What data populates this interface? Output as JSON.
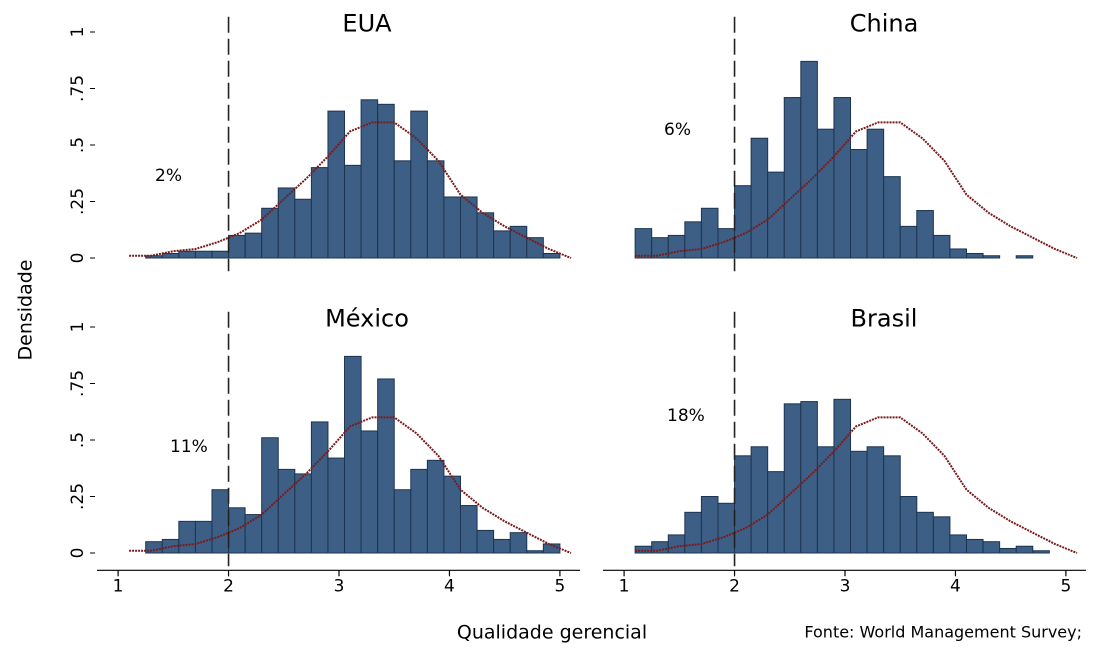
{
  "y_label": "Densidade",
  "x_label": "Qualidade gerencial",
  "source": "Fonte: World Management Survey;",
  "chart_data": [
    {
      "type": "histogram",
      "title": "EUA",
      "annotation": "2%",
      "color": "#3e5f85",
      "bins": [
        1.1,
        1.25,
        1.4,
        1.55,
        1.7,
        1.85,
        2.0,
        2.15,
        2.3,
        2.45,
        2.6,
        2.75,
        2.9,
        3.05,
        3.2,
        3.35,
        3.5,
        3.65,
        3.8,
        3.95,
        4.1,
        4.25,
        4.4,
        4.55,
        4.7,
        4.85,
        5.0
      ],
      "values": [
        0,
        0.01,
        0.02,
        0.03,
        0.03,
        0.03,
        0.1,
        0.11,
        0.22,
        0.31,
        0.26,
        0.4,
        0.65,
        0.41,
        0.7,
        0.68,
        0.43,
        0.65,
        0.43,
        0.27,
        0.27,
        0.2,
        0.12,
        0.14,
        0.09,
        0.02
      ],
      "xlim": [
        0.8,
        5.2
      ],
      "ylim": [
        -0.05,
        1.05
      ],
      "yticks": [
        0,
        {
          "value": 0.25,
          "label": ".25"
        },
        {
          "value": 0.5,
          "label": ".5"
        },
        {
          "value": 0.75,
          "label": ".75"
        },
        1
      ],
      "vline": 2,
      "curve": {
        "color": "#7a1a1a",
        "x": [
          1.1,
          1.3,
          1.5,
          1.7,
          1.9,
          2.1,
          2.3,
          2.5,
          2.7,
          2.9,
          3.1,
          3.3,
          3.5,
          3.7,
          3.9,
          4.1,
          4.3,
          4.5,
          4.7,
          4.9,
          5.1
        ],
        "y": [
          0.01,
          0.01,
          0.03,
          0.04,
          0.07,
          0.11,
          0.17,
          0.26,
          0.35,
          0.45,
          0.56,
          0.6,
          0.6,
          0.53,
          0.43,
          0.28,
          0.2,
          0.14,
          0.09,
          0.04,
          0
        ]
      }
    },
    {
      "type": "histogram",
      "title": "China",
      "annotation": "6%",
      "color": "#3e5f85",
      "bins": [
        1.1,
        1.25,
        1.4,
        1.55,
        1.7,
        1.85,
        2.0,
        2.15,
        2.3,
        2.45,
        2.6,
        2.75,
        2.9,
        3.05,
        3.2,
        3.35,
        3.5,
        3.65,
        3.8,
        3.95,
        4.1,
        4.25,
        4.4,
        4.55,
        4.7,
        4.85,
        5.0
      ],
      "values": [
        0.13,
        0.09,
        0.1,
        0.16,
        0.22,
        0.13,
        0.32,
        0.53,
        0.38,
        0.71,
        0.87,
        0.57,
        0.71,
        0.48,
        0.57,
        0.36,
        0.14,
        0.21,
        0.1,
        0.04,
        0.02,
        0.01,
        0,
        0.01,
        0,
        0
      ],
      "xlim": [
        0.8,
        5.2
      ],
      "ylim": [
        -0.05,
        1.05
      ],
      "vline": 2,
      "curve": {
        "color": "#7a1a1a",
        "x": [
          1.1,
          1.3,
          1.5,
          1.7,
          1.9,
          2.1,
          2.3,
          2.5,
          2.7,
          2.9,
          3.1,
          3.3,
          3.5,
          3.7,
          3.9,
          4.1,
          4.3,
          4.5,
          4.7,
          4.9,
          5.1
        ],
        "y": [
          0.01,
          0.01,
          0.03,
          0.04,
          0.07,
          0.11,
          0.17,
          0.26,
          0.35,
          0.45,
          0.56,
          0.6,
          0.6,
          0.53,
          0.43,
          0.28,
          0.2,
          0.14,
          0.09,
          0.04,
          0
        ]
      }
    },
    {
      "type": "histogram",
      "title": "México",
      "annotation": "11%",
      "color": "#3e5f85",
      "bins": [
        1.1,
        1.25,
        1.4,
        1.55,
        1.7,
        1.85,
        2.0,
        2.15,
        2.3,
        2.45,
        2.6,
        2.75,
        2.9,
        3.05,
        3.2,
        3.35,
        3.5,
        3.65,
        3.8,
        3.95,
        4.1,
        4.25,
        4.4,
        4.55,
        4.7,
        4.85,
        5.0
      ],
      "values": [
        0,
        0.05,
        0.06,
        0.14,
        0.14,
        0.28,
        0.2,
        0.17,
        0.51,
        0.37,
        0.35,
        0.58,
        0.42,
        0.87,
        0.54,
        0.77,
        0.28,
        0.37,
        0.41,
        0.34,
        0.21,
        0.1,
        0.06,
        0.09,
        0.01,
        0.04
      ],
      "xlim": [
        0.8,
        5.2
      ],
      "ylim": [
        -0.05,
        1.05
      ],
      "yticks": [
        0,
        {
          "value": 0.25,
          "label": ".25"
        },
        {
          "value": 0.5,
          "label": ".5"
        },
        {
          "value": 0.75,
          "label": ".75"
        },
        1
      ],
      "xticks": [
        1,
        2,
        3,
        4,
        5
      ],
      "vline": 2,
      "curve": {
        "color": "#7a1a1a",
        "x": [
          1.1,
          1.3,
          1.5,
          1.7,
          1.9,
          2.1,
          2.3,
          2.5,
          2.7,
          2.9,
          3.1,
          3.3,
          3.5,
          3.7,
          3.9,
          4.1,
          4.3,
          4.5,
          4.7,
          4.9,
          5.1
        ],
        "y": [
          0.01,
          0.01,
          0.03,
          0.04,
          0.07,
          0.11,
          0.17,
          0.26,
          0.35,
          0.45,
          0.56,
          0.6,
          0.6,
          0.53,
          0.43,
          0.28,
          0.2,
          0.14,
          0.09,
          0.04,
          0
        ]
      }
    },
    {
      "type": "histogram",
      "title": "Brasil",
      "annotation": "18%",
      "color": "#3e5f85",
      "bins": [
        1.1,
        1.25,
        1.4,
        1.55,
        1.7,
        1.85,
        2.0,
        2.15,
        2.3,
        2.45,
        2.6,
        2.75,
        2.9,
        3.05,
        3.2,
        3.35,
        3.5,
        3.65,
        3.8,
        3.95,
        4.1,
        4.25,
        4.4,
        4.55,
        4.7,
        4.85,
        5.0
      ],
      "values": [
        0.03,
        0.05,
        0.08,
        0.18,
        0.25,
        0.22,
        0.43,
        0.47,
        0.36,
        0.66,
        0.67,
        0.47,
        0.68,
        0.45,
        0.47,
        0.43,
        0.25,
        0.18,
        0.16,
        0.08,
        0.06,
        0.05,
        0.02,
        0.03,
        0.01,
        0
      ],
      "xlim": [
        0.8,
        5.2
      ],
      "ylim": [
        -0.05,
        1.05
      ],
      "xticks": [
        1,
        2,
        3,
        4,
        5
      ],
      "vline": 2,
      "curve": {
        "color": "#7a1a1a",
        "x": [
          1.1,
          1.3,
          1.5,
          1.7,
          1.9,
          2.1,
          2.3,
          2.5,
          2.7,
          2.9,
          3.1,
          3.3,
          3.5,
          3.7,
          3.9,
          4.1,
          4.3,
          4.5,
          4.7,
          4.9,
          5.1
        ],
        "y": [
          0.01,
          0.01,
          0.03,
          0.04,
          0.07,
          0.11,
          0.17,
          0.26,
          0.35,
          0.45,
          0.56,
          0.6,
          0.6,
          0.53,
          0.43,
          0.28,
          0.2,
          0.14,
          0.09,
          0.04,
          0
        ]
      }
    }
  ]
}
